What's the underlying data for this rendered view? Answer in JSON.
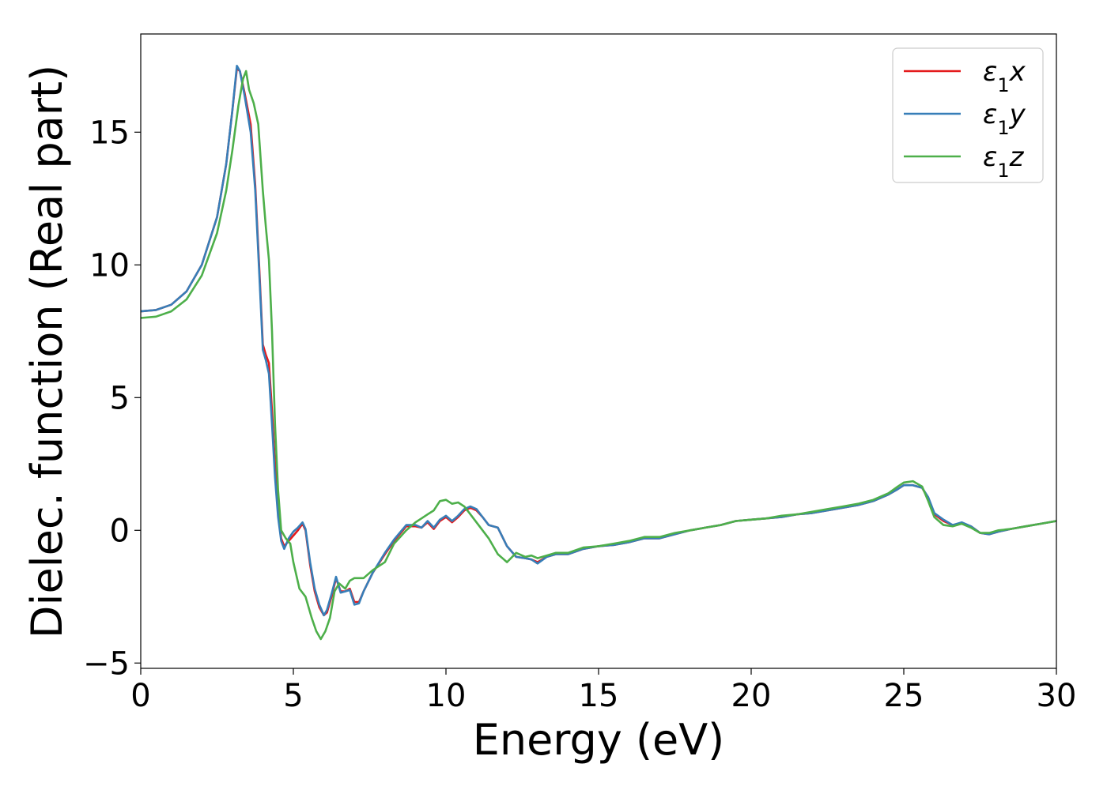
{
  "chart_data": {
    "type": "line",
    "xlabel": "Energy (eV)",
    "ylabel": "Dielec. function (Real part)",
    "xlim": [
      0,
      30
    ],
    "ylim": [
      -5.2,
      18.7
    ],
    "xticks": [
      0,
      5,
      10,
      15,
      20,
      25,
      30
    ],
    "yticks": [
      -5,
      0,
      5,
      10,
      15
    ],
    "xtick_labels": [
      "0",
      "5",
      "10",
      "15",
      "20",
      "25",
      "30"
    ],
    "ytick_labels": [
      "−5",
      "0",
      "5",
      "10",
      "15"
    ],
    "grid": false,
    "legend_position": "top-right",
    "series": [
      {
        "name": "ε1x",
        "legend_main": "ε",
        "legend_sub": "1",
        "legend_suffix": "x",
        "color": "#e41a1c",
        "points": [
          [
            0,
            8.25
          ],
          [
            0.5,
            8.3
          ],
          [
            1.0,
            8.5
          ],
          [
            1.5,
            9.0
          ],
          [
            2.0,
            10.0
          ],
          [
            2.5,
            11.8
          ],
          [
            2.8,
            13.8
          ],
          [
            3.0,
            15.8
          ],
          [
            3.15,
            17.4
          ],
          [
            3.25,
            17.3
          ],
          [
            3.4,
            16.5
          ],
          [
            3.6,
            15.3
          ],
          [
            3.75,
            13.0
          ],
          [
            3.9,
            9.5
          ],
          [
            4.0,
            7.0
          ],
          [
            4.1,
            6.6
          ],
          [
            4.2,
            6.3
          ],
          [
            4.3,
            4.5
          ],
          [
            4.4,
            2.5
          ],
          [
            4.5,
            0.8
          ],
          [
            4.6,
            -0.3
          ],
          [
            4.7,
            -0.6
          ],
          [
            4.85,
            -0.4
          ],
          [
            5.0,
            -0.2
          ],
          [
            5.15,
            0.0
          ],
          [
            5.3,
            0.25
          ],
          [
            5.4,
            0.0
          ],
          [
            5.55,
            -1.3
          ],
          [
            5.7,
            -2.3
          ],
          [
            5.85,
            -2.9
          ],
          [
            6.0,
            -3.2
          ],
          [
            6.1,
            -3.1
          ],
          [
            6.25,
            -2.5
          ],
          [
            6.4,
            -1.8
          ],
          [
            6.55,
            -2.3
          ],
          [
            6.7,
            -2.3
          ],
          [
            6.85,
            -2.2
          ],
          [
            7.0,
            -2.7
          ],
          [
            7.15,
            -2.7
          ],
          [
            7.3,
            -2.3
          ],
          [
            7.6,
            -1.6
          ],
          [
            8.0,
            -0.9
          ],
          [
            8.3,
            -0.4
          ],
          [
            8.7,
            0.15
          ],
          [
            9.0,
            0.15
          ],
          [
            9.2,
            0.1
          ],
          [
            9.4,
            0.3
          ],
          [
            9.6,
            0.05
          ],
          [
            9.8,
            0.35
          ],
          [
            10.0,
            0.5
          ],
          [
            10.2,
            0.3
          ],
          [
            10.4,
            0.5
          ],
          [
            10.6,
            0.75
          ],
          [
            10.8,
            0.85
          ],
          [
            11.0,
            0.75
          ],
          [
            11.2,
            0.5
          ],
          [
            11.4,
            0.2
          ],
          [
            11.7,
            0.1
          ],
          [
            12.0,
            -0.6
          ],
          [
            12.3,
            -1.0
          ],
          [
            12.6,
            -1.05
          ],
          [
            12.8,
            -1.1
          ],
          [
            13.0,
            -1.2
          ],
          [
            13.3,
            -1.0
          ],
          [
            13.6,
            -0.9
          ],
          [
            14.0,
            -0.9
          ],
          [
            14.5,
            -0.7
          ],
          [
            15.0,
            -0.6
          ],
          [
            15.5,
            -0.55
          ],
          [
            16.0,
            -0.45
          ],
          [
            16.5,
            -0.3
          ],
          [
            17.0,
            -0.3
          ],
          [
            17.5,
            -0.15
          ],
          [
            18.0,
            0.0
          ],
          [
            18.5,
            0.1
          ],
          [
            19.0,
            0.2
          ],
          [
            19.5,
            0.35
          ],
          [
            20.0,
            0.4
          ],
          [
            20.5,
            0.45
          ],
          [
            21.0,
            0.5
          ],
          [
            21.5,
            0.6
          ],
          [
            22.0,
            0.65
          ],
          [
            22.5,
            0.75
          ],
          [
            23.0,
            0.85
          ],
          [
            23.5,
            0.95
          ],
          [
            24.0,
            1.1
          ],
          [
            24.5,
            1.35
          ],
          [
            24.8,
            1.55
          ],
          [
            25.0,
            1.7
          ],
          [
            25.3,
            1.7
          ],
          [
            25.6,
            1.6
          ],
          [
            25.8,
            1.2
          ],
          [
            26.0,
            0.6
          ],
          [
            26.3,
            0.35
          ],
          [
            26.6,
            0.2
          ],
          [
            26.9,
            0.25
          ],
          [
            27.2,
            0.15
          ],
          [
            27.5,
            -0.1
          ],
          [
            27.8,
            -0.15
          ],
          [
            28.1,
            -0.05
          ],
          [
            28.5,
            0.05
          ],
          [
            29.0,
            0.15
          ],
          [
            29.5,
            0.25
          ],
          [
            30.0,
            0.35
          ]
        ]
      },
      {
        "name": "ε1y",
        "legend_main": "ε",
        "legend_sub": "1",
        "legend_suffix": "y",
        "color": "#377eb8",
        "points": [
          [
            0,
            8.25
          ],
          [
            0.5,
            8.3
          ],
          [
            1.0,
            8.5
          ],
          [
            1.5,
            9.0
          ],
          [
            2.0,
            10.0
          ],
          [
            2.5,
            11.8
          ],
          [
            2.8,
            13.8
          ],
          [
            3.0,
            15.8
          ],
          [
            3.15,
            17.5
          ],
          [
            3.25,
            17.3
          ],
          [
            3.4,
            16.4
          ],
          [
            3.6,
            15.0
          ],
          [
            3.75,
            12.8
          ],
          [
            3.9,
            9.3
          ],
          [
            4.0,
            6.8
          ],
          [
            4.1,
            6.4
          ],
          [
            4.2,
            5.9
          ],
          [
            4.3,
            4.0
          ],
          [
            4.4,
            2.0
          ],
          [
            4.5,
            0.5
          ],
          [
            4.6,
            -0.4
          ],
          [
            4.7,
            -0.7
          ],
          [
            4.85,
            -0.3
          ],
          [
            5.0,
            -0.05
          ],
          [
            5.15,
            0.1
          ],
          [
            5.3,
            0.3
          ],
          [
            5.4,
            0.05
          ],
          [
            5.55,
            -1.2
          ],
          [
            5.7,
            -2.2
          ],
          [
            5.85,
            -2.8
          ],
          [
            6.0,
            -3.2
          ],
          [
            6.1,
            -3.0
          ],
          [
            6.25,
            -2.4
          ],
          [
            6.4,
            -1.75
          ],
          [
            6.55,
            -2.35
          ],
          [
            6.7,
            -2.3
          ],
          [
            6.85,
            -2.25
          ],
          [
            7.0,
            -2.8
          ],
          [
            7.15,
            -2.75
          ],
          [
            7.3,
            -2.3
          ],
          [
            7.6,
            -1.6
          ],
          [
            8.0,
            -0.85
          ],
          [
            8.3,
            -0.35
          ],
          [
            8.7,
            0.2
          ],
          [
            9.0,
            0.2
          ],
          [
            9.2,
            0.1
          ],
          [
            9.4,
            0.35
          ],
          [
            9.6,
            0.1
          ],
          [
            9.8,
            0.4
          ],
          [
            10.0,
            0.55
          ],
          [
            10.2,
            0.35
          ],
          [
            10.4,
            0.55
          ],
          [
            10.6,
            0.8
          ],
          [
            10.8,
            0.9
          ],
          [
            11.0,
            0.8
          ],
          [
            11.2,
            0.5
          ],
          [
            11.4,
            0.2
          ],
          [
            11.7,
            0.1
          ],
          [
            12.0,
            -0.6
          ],
          [
            12.3,
            -1.0
          ],
          [
            12.6,
            -1.05
          ],
          [
            12.8,
            -1.1
          ],
          [
            13.0,
            -1.25
          ],
          [
            13.3,
            -1.0
          ],
          [
            13.6,
            -0.9
          ],
          [
            14.0,
            -0.9
          ],
          [
            14.5,
            -0.7
          ],
          [
            15.0,
            -0.6
          ],
          [
            15.5,
            -0.55
          ],
          [
            16.0,
            -0.45
          ],
          [
            16.5,
            -0.3
          ],
          [
            17.0,
            -0.3
          ],
          [
            17.5,
            -0.15
          ],
          [
            18.0,
            0.0
          ],
          [
            18.5,
            0.1
          ],
          [
            19.0,
            0.2
          ],
          [
            19.5,
            0.35
          ],
          [
            20.0,
            0.4
          ],
          [
            20.5,
            0.45
          ],
          [
            21.0,
            0.5
          ],
          [
            21.5,
            0.6
          ],
          [
            22.0,
            0.65
          ],
          [
            22.5,
            0.75
          ],
          [
            23.0,
            0.85
          ],
          [
            23.5,
            0.95
          ],
          [
            24.0,
            1.1
          ],
          [
            24.5,
            1.35
          ],
          [
            24.8,
            1.55
          ],
          [
            25.0,
            1.7
          ],
          [
            25.3,
            1.7
          ],
          [
            25.6,
            1.6
          ],
          [
            25.8,
            1.25
          ],
          [
            26.0,
            0.65
          ],
          [
            26.3,
            0.4
          ],
          [
            26.6,
            0.2
          ],
          [
            26.9,
            0.3
          ],
          [
            27.2,
            0.15
          ],
          [
            27.5,
            -0.1
          ],
          [
            27.8,
            -0.15
          ],
          [
            28.1,
            -0.05
          ],
          [
            28.5,
            0.05
          ],
          [
            29.0,
            0.15
          ],
          [
            29.5,
            0.25
          ],
          [
            30.0,
            0.35
          ]
        ]
      },
      {
        "name": "ε1z",
        "legend_main": "ε",
        "legend_sub": "1",
        "legend_suffix": "z",
        "color": "#4daf4a",
        "points": [
          [
            0,
            8.0
          ],
          [
            0.5,
            8.05
          ],
          [
            1.0,
            8.25
          ],
          [
            1.5,
            8.7
          ],
          [
            2.0,
            9.6
          ],
          [
            2.5,
            11.2
          ],
          [
            2.8,
            12.8
          ],
          [
            3.0,
            14.3
          ],
          [
            3.2,
            16.0
          ],
          [
            3.35,
            17.0
          ],
          [
            3.45,
            17.3
          ],
          [
            3.55,
            16.6
          ],
          [
            3.7,
            16.1
          ],
          [
            3.85,
            15.3
          ],
          [
            4.0,
            12.8
          ],
          [
            4.1,
            11.4
          ],
          [
            4.2,
            10.2
          ],
          [
            4.3,
            7.5
          ],
          [
            4.4,
            4.0
          ],
          [
            4.5,
            1.5
          ],
          [
            4.6,
            0.0
          ],
          [
            4.75,
            -0.3
          ],
          [
            4.9,
            -0.5
          ],
          [
            5.0,
            -1.2
          ],
          [
            5.2,
            -2.2
          ],
          [
            5.4,
            -2.5
          ],
          [
            5.6,
            -3.3
          ],
          [
            5.75,
            -3.8
          ],
          [
            5.9,
            -4.1
          ],
          [
            6.05,
            -3.8
          ],
          [
            6.2,
            -3.3
          ],
          [
            6.35,
            -2.3
          ],
          [
            6.5,
            -2.0
          ],
          [
            6.7,
            -2.2
          ],
          [
            6.85,
            -1.9
          ],
          [
            7.0,
            -1.8
          ],
          [
            7.3,
            -1.8
          ],
          [
            7.6,
            -1.5
          ],
          [
            8.0,
            -1.2
          ],
          [
            8.3,
            -0.5
          ],
          [
            8.7,
            0.0
          ],
          [
            9.0,
            0.3
          ],
          [
            9.2,
            0.45
          ],
          [
            9.4,
            0.6
          ],
          [
            9.6,
            0.75
          ],
          [
            9.8,
            1.1
          ],
          [
            10.0,
            1.15
          ],
          [
            10.2,
            1.0
          ],
          [
            10.4,
            1.05
          ],
          [
            10.6,
            0.9
          ],
          [
            10.8,
            0.6
          ],
          [
            11.0,
            0.3
          ],
          [
            11.2,
            0.0
          ],
          [
            11.4,
            -0.3
          ],
          [
            11.7,
            -0.9
          ],
          [
            12.0,
            -1.2
          ],
          [
            12.3,
            -0.85
          ],
          [
            12.6,
            -1.0
          ],
          [
            12.8,
            -0.95
          ],
          [
            13.0,
            -1.05
          ],
          [
            13.3,
            -0.95
          ],
          [
            13.6,
            -0.85
          ],
          [
            14.0,
            -0.85
          ],
          [
            14.5,
            -0.65
          ],
          [
            15.0,
            -0.6
          ],
          [
            15.5,
            -0.5
          ],
          [
            16.0,
            -0.4
          ],
          [
            16.5,
            -0.25
          ],
          [
            17.0,
            -0.25
          ],
          [
            17.5,
            -0.1
          ],
          [
            18.0,
            0.0
          ],
          [
            18.5,
            0.1
          ],
          [
            19.0,
            0.2
          ],
          [
            19.5,
            0.35
          ],
          [
            20.0,
            0.4
          ],
          [
            20.5,
            0.45
          ],
          [
            21.0,
            0.55
          ],
          [
            21.5,
            0.6
          ],
          [
            22.0,
            0.7
          ],
          [
            22.5,
            0.8
          ],
          [
            23.0,
            0.9
          ],
          [
            23.5,
            1.0
          ],
          [
            24.0,
            1.15
          ],
          [
            24.5,
            1.4
          ],
          [
            24.8,
            1.65
          ],
          [
            25.0,
            1.8
          ],
          [
            25.3,
            1.85
          ],
          [
            25.6,
            1.65
          ],
          [
            25.8,
            1.1
          ],
          [
            26.0,
            0.5
          ],
          [
            26.3,
            0.2
          ],
          [
            26.6,
            0.15
          ],
          [
            26.9,
            0.25
          ],
          [
            27.2,
            0.1
          ],
          [
            27.5,
            -0.1
          ],
          [
            27.8,
            -0.1
          ],
          [
            28.1,
            0.0
          ],
          [
            28.5,
            0.05
          ],
          [
            29.0,
            0.15
          ],
          [
            29.5,
            0.25
          ],
          [
            30.0,
            0.35
          ]
        ]
      }
    ]
  }
}
